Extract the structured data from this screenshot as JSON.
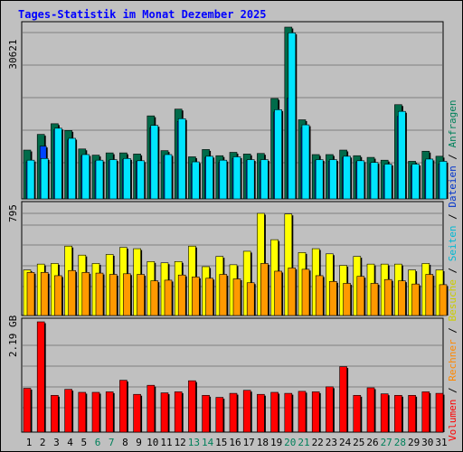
{
  "title": "Tages-Statistik im Monat Dezember 2025",
  "colors": {
    "background": "#c0c0c0",
    "title": "#0000ff",
    "border": "#000000",
    "gridline": "#808080",
    "requests": "#006b4a",
    "files": "#0044ff",
    "pages": "#00e5ff",
    "visits": "#ffff00",
    "sites": "#ff9900",
    "volume": "#ff0000",
    "weekend": "#00805a",
    "weekday": "#000000"
  },
  "right_legend": [
    {
      "text": "Anfragen",
      "color": "#00805a"
    },
    {
      "text": "Dateien",
      "color": "#0033cc"
    },
    {
      "text": "Seiten",
      "color": "#00b8d4"
    },
    {
      "text": "Besuche",
      "color": "#cccc00"
    },
    {
      "text": "Rechner",
      "color": "#ff8800"
    },
    {
      "text": "Volumen",
      "color": "#ff0000"
    }
  ],
  "chart_data": {
    "type": "bar",
    "days": [
      "1",
      "2",
      "3",
      "4",
      "5",
      "6",
      "7",
      "8",
      "9",
      "10",
      "11",
      "12",
      "13",
      "14",
      "15",
      "16",
      "17",
      "18",
      "19",
      "20",
      "21",
      "22",
      "23",
      "24",
      "25",
      "26",
      "27",
      "28",
      "29",
      "30",
      "31"
    ],
    "weekend_days": [
      "6",
      "7",
      "13",
      "14",
      "20",
      "21",
      "27",
      "28"
    ],
    "panels": [
      {
        "name": "top",
        "axis_label": "30621",
        "ymax": 30621,
        "series": [
          {
            "name": "Anfragen",
            "key": "requests",
            "values": [
              8700,
              11500,
              13400,
              12200,
              8900,
              7800,
              8200,
              8200,
              8000,
              14800,
              8600,
              16000,
              7500,
              8800,
              7700,
              8300,
              8000,
              8100,
              17900,
              30621,
              14100,
              7900,
              7900,
              8700,
              7700,
              7400,
              6900,
              16800,
              6700,
              8500,
              7600
            ]
          },
          {
            "name": "Dateien",
            "key": "files",
            "values": [
              6600,
              9400,
              12300,
              10500,
              7700,
              6700,
              6800,
              7000,
              6700,
              12700,
              7700,
              13800,
              6200,
              7400,
              6500,
              7200,
              6800,
              6600,
              15500,
              18000,
              12700,
              6800,
              6700,
              7400,
              6600,
              6300,
              5900,
              14700,
              5900,
              6800,
              6200
            ]
          },
          {
            "name": "Seiten",
            "key": "pages",
            "values": [
              6900,
              7200,
              12600,
              10800,
              7900,
              6900,
              7000,
              7200,
              6800,
              13100,
              7900,
              14300,
              6600,
              7600,
              6900,
              7500,
              7000,
              7000,
              15900,
              29600,
              13200,
              7000,
              7000,
              7600,
              6800,
              6500,
              6200,
              15600,
              6200,
              7100,
              6700
            ]
          }
        ]
      },
      {
        "name": "middle",
        "axis_label": "795",
        "ymax": 795,
        "series": [
          {
            "name": "Besuche",
            "key": "visits",
            "values": [
              355,
              400,
              405,
              540,
              470,
              405,
              475,
              530,
              520,
              420,
              410,
              420,
              540,
              380,
              460,
              395,
              500,
              795,
              590,
              790,
              490,
              520,
              480,
              390,
              460,
              400,
              400,
              400,
              355,
              405,
              355
            ]
          },
          {
            "name": "Rechner",
            "key": "sites",
            "values": [
              335,
              335,
              310,
              350,
              335,
              330,
              320,
              325,
              320,
              270,
              275,
              315,
              300,
              290,
              320,
              285,
              255,
              405,
              345,
              370,
              360,
              310,
              265,
              250,
              305,
              250,
              280,
              270,
              245,
              320,
              240
            ]
          }
        ]
      },
      {
        "name": "bottom",
        "axis_label": "2.19 GB",
        "ymax": 2.19,
        "series": [
          {
            "name": "Volumen",
            "key": "volume",
            "values": [
              0.87,
              2.19,
              0.73,
              0.85,
              0.79,
              0.79,
              0.8,
              1.03,
              0.75,
              0.93,
              0.78,
              0.8,
              1.02,
              0.73,
              0.69,
              0.77,
              0.83,
              0.75,
              0.79,
              0.77,
              0.81,
              0.8,
              0.9,
              1.3,
              0.73,
              0.88,
              0.76,
              0.73,
              0.73,
              0.8,
              0.77
            ]
          }
        ]
      }
    ]
  }
}
